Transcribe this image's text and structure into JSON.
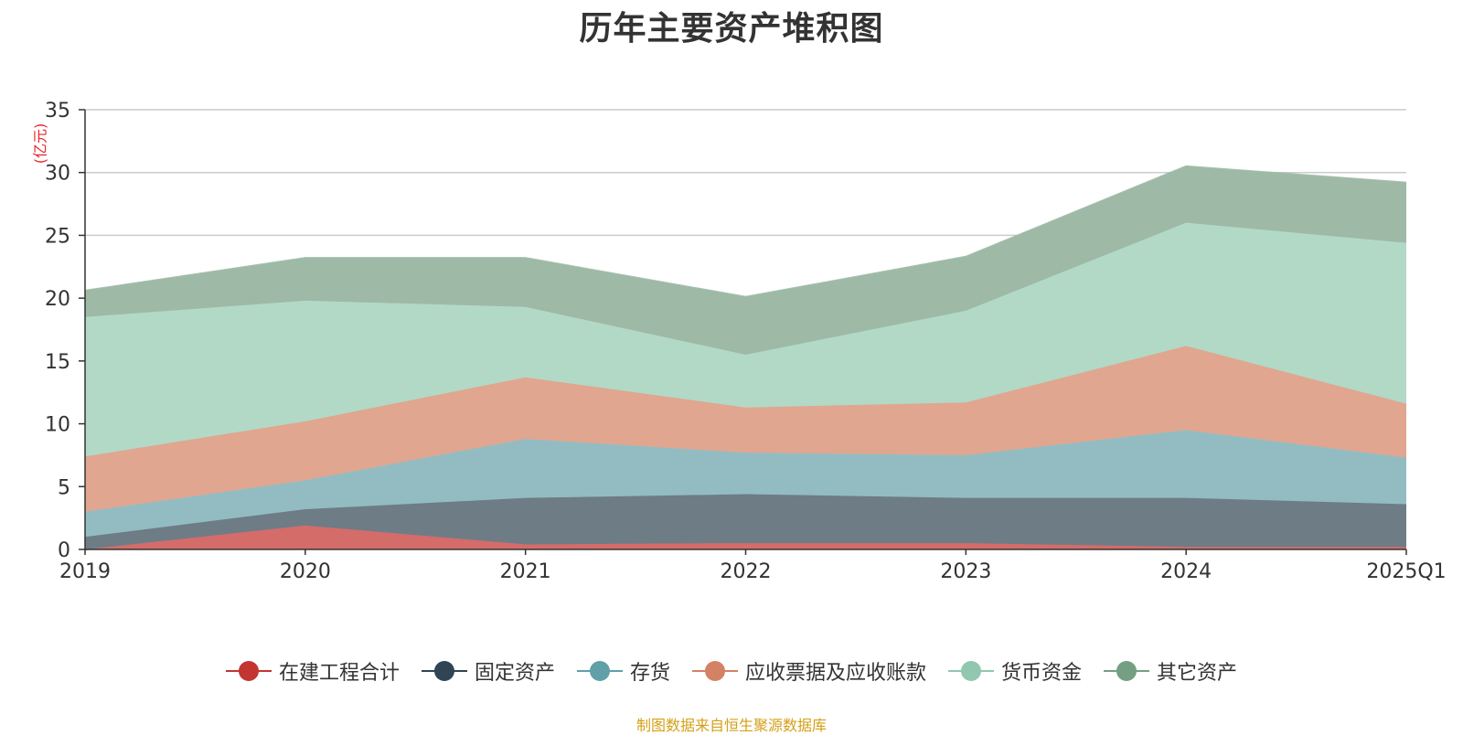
{
  "chart_data": {
    "type": "area",
    "stacked": true,
    "title": "历年主要资产堆积图",
    "unit_label": "(亿元)",
    "categories": [
      "2019",
      "2020",
      "2021",
      "2022",
      "2023",
      "2024",
      "2025Q1"
    ],
    "ylim": [
      0,
      35
    ],
    "yticks": [
      0,
      5,
      10,
      15,
      20,
      25,
      30,
      35
    ],
    "grid": true,
    "legend_position": "bottom",
    "series": [
      {
        "name": "在建工程合计",
        "color": "#c23531",
        "fill": "#d46c6a",
        "values": [
          0.0,
          1.9,
          0.4,
          0.5,
          0.5,
          0.2,
          0.2
        ]
      },
      {
        "name": "固定资产",
        "color": "#2f4554",
        "fill": "#6e7c86",
        "values": [
          1.0,
          1.3,
          3.7,
          3.9,
          3.6,
          3.9,
          3.4
        ]
      },
      {
        "name": "存货",
        "color": "#61a0a8",
        "fill": "#92bcc2",
        "values": [
          2.0,
          2.3,
          4.7,
          3.3,
          3.4,
          5.4,
          3.7
        ]
      },
      {
        "name": "应收票据及应收账款",
        "color": "#d48265",
        "fill": "#e0a690",
        "values": [
          4.4,
          4.7,
          4.9,
          3.6,
          4.2,
          6.7,
          4.3
        ]
      },
      {
        "name": "货币资金",
        "color": "#91c7ae",
        "fill": "#b1d9c6",
        "values": [
          11.1,
          9.6,
          5.6,
          4.2,
          7.3,
          9.8,
          12.8
        ]
      },
      {
        "name": "其它资产",
        "color": "#749f83",
        "fill": "#9eb9a6",
        "values": [
          2.1,
          3.4,
          3.9,
          4.6,
          4.3,
          4.5,
          4.8
        ]
      }
    ]
  },
  "source": "制图数据来自恒生聚源数据库"
}
